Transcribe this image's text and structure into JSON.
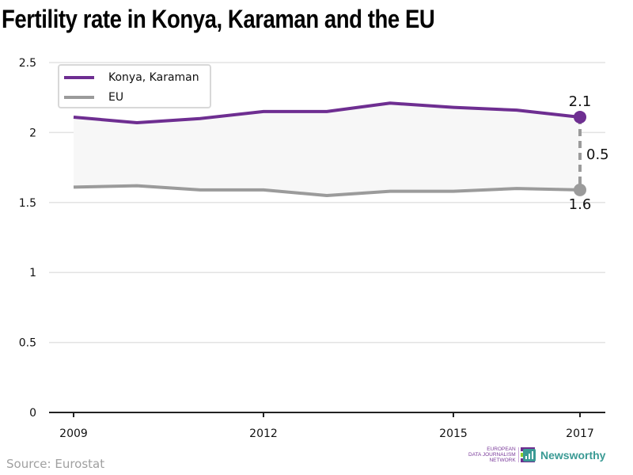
{
  "chart_data": {
    "type": "line",
    "title": "Fertility rate in Konya, Karaman and the EU",
    "xlabel": "",
    "ylabel": "",
    "x": [
      2009,
      2010,
      2011,
      2012,
      2013,
      2014,
      2015,
      2016,
      2017
    ],
    "x_ticks": [
      "2009",
      "2012",
      "2015",
      "2017"
    ],
    "y_ticks": [
      "0",
      "0.5",
      "1",
      "1.5",
      "2",
      "2.5"
    ],
    "ylim": [
      0,
      2.5
    ],
    "grid": true,
    "legend_position": "top-left",
    "series": [
      {
        "name": "Konya, Karaman",
        "color": "#6e2e91",
        "values": [
          2.11,
          2.07,
          2.1,
          2.15,
          2.15,
          2.21,
          2.18,
          2.16,
          2.11
        ]
      },
      {
        "name": "EU",
        "color": "#9b9b9b",
        "values": [
          1.61,
          1.62,
          1.59,
          1.59,
          1.55,
          1.58,
          1.58,
          1.6,
          1.59
        ]
      }
    ],
    "annotations": {
      "last_value_top": "2.1",
      "last_value_bottom": "1.6",
      "difference": "0.5"
    },
    "shaded_band_color": "#f7f7f7"
  },
  "footer": {
    "source": "Source: Eurostat",
    "edjn_lines": [
      "EUROPEAN",
      "DATA JOURNALISM",
      "NETWORK"
    ],
    "newsworthy": "Newsworthy"
  }
}
